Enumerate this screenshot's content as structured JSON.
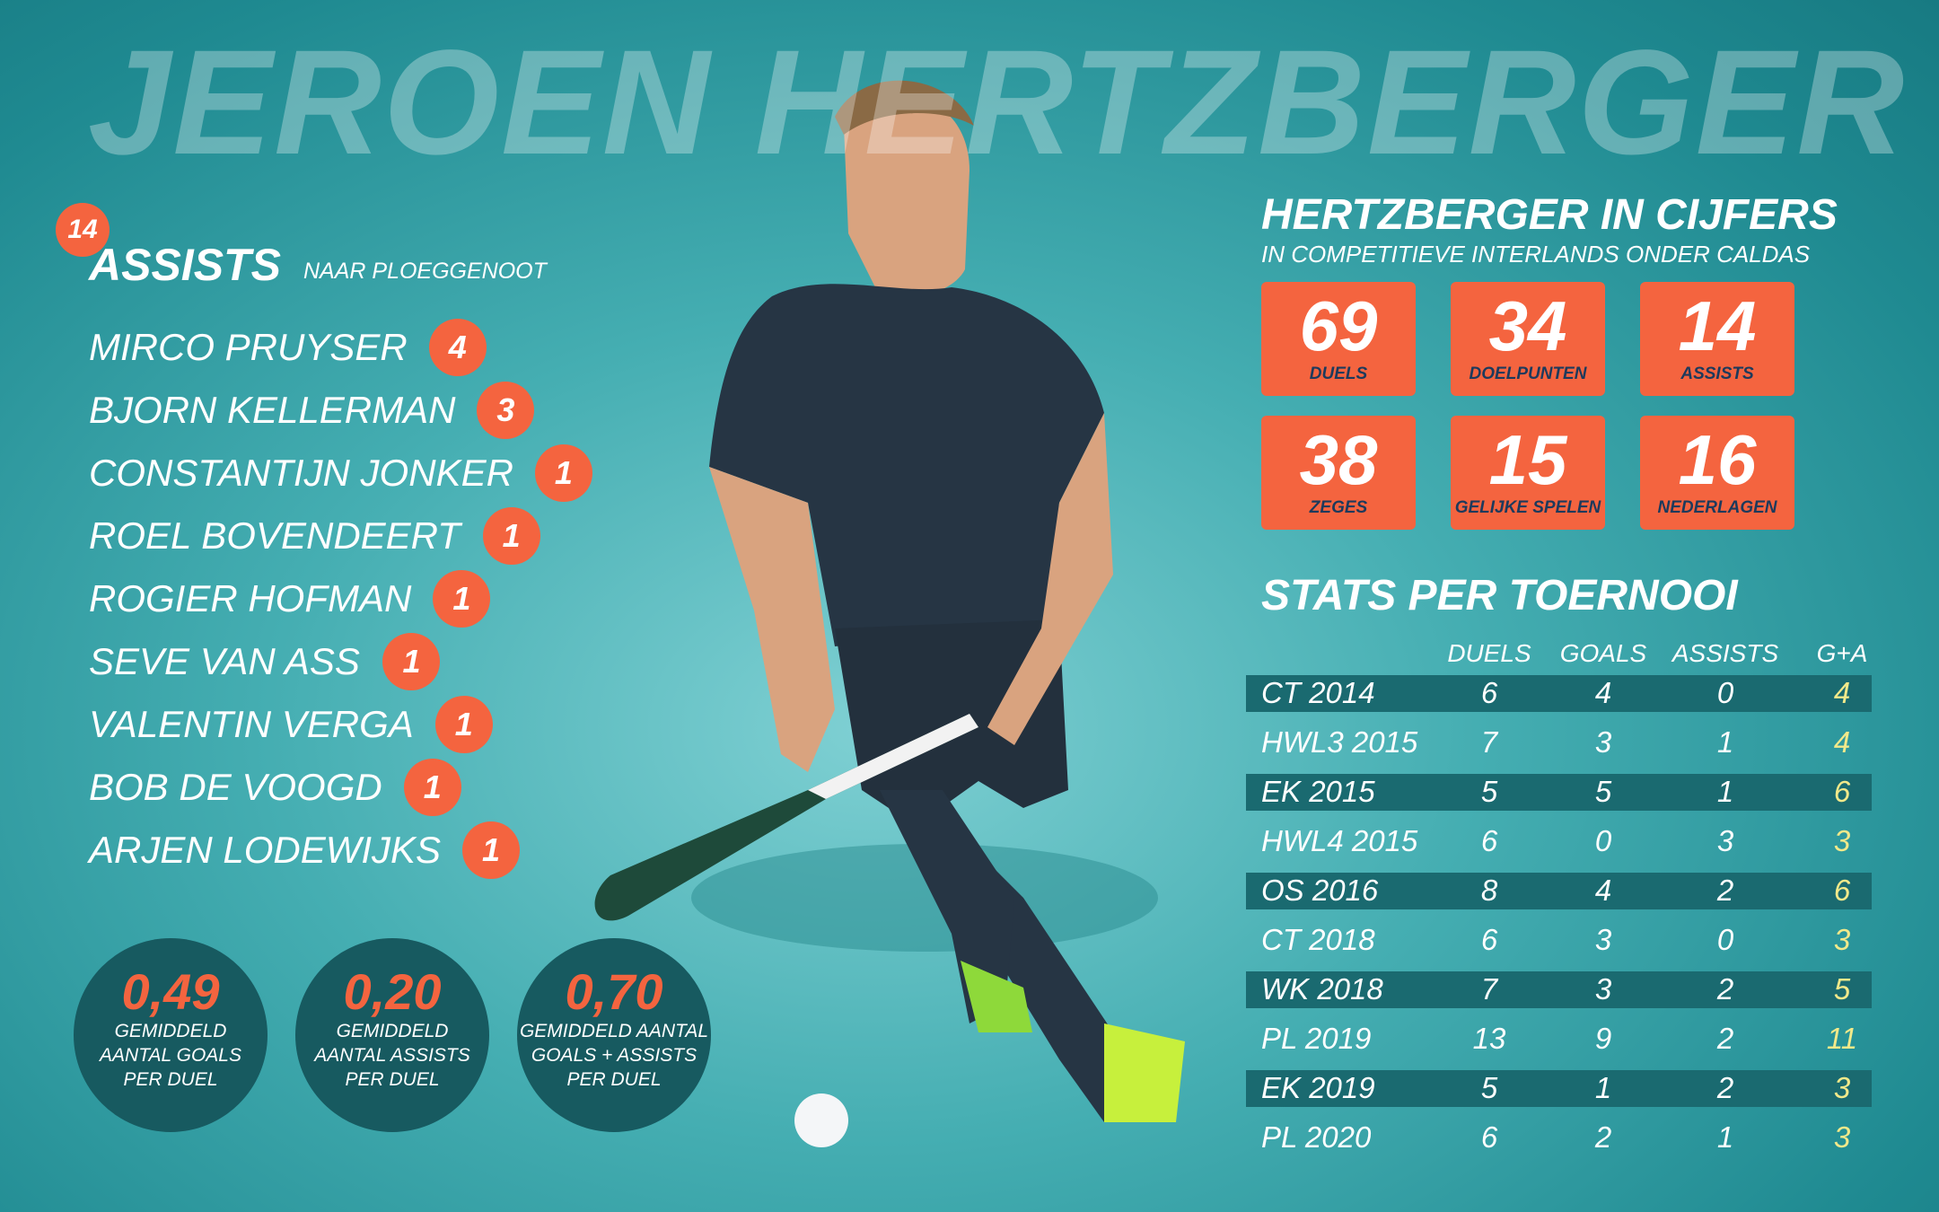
{
  "title": "JEROEN HERTZBERGER",
  "assists": {
    "total": "14",
    "label": "ASSISTS",
    "sublabel": "NAAR PLOEGGENOOT",
    "players": [
      {
        "name": "MIRCO PRUYSER",
        "count": "4"
      },
      {
        "name": "BJORN KELLERMAN",
        "count": "3"
      },
      {
        "name": "CONSTANTIJN JONKER",
        "count": "1"
      },
      {
        "name": "ROEL BOVENDEERT",
        "count": "1"
      },
      {
        "name": "ROGIER HOFMAN",
        "count": "1"
      },
      {
        "name": "SEVE VAN ASS",
        "count": "1"
      },
      {
        "name": "VALENTIN VERGA",
        "count": "1"
      },
      {
        "name": "BOB DE VOOGD",
        "count": "1"
      },
      {
        "name": "ARJEN LODEWIJKS",
        "count": "1"
      }
    ]
  },
  "averages": [
    {
      "value": "0,49",
      "lines": [
        "GEMIDDELD",
        "AANTAL GOALS",
        "PER DUEL"
      ]
    },
    {
      "value": "0,20",
      "lines": [
        "GEMIDDELD",
        "AANTAL ASSISTS",
        "PER DUEL"
      ]
    },
    {
      "value": "0,70",
      "lines": [
        "GEMIDDELD AANTAL",
        "GOALS + ASSISTS",
        "PER DUEL"
      ]
    }
  ],
  "cijfers": {
    "title": "HERTZBERGER IN CIJFERS",
    "subtitle": "IN COMPETITIEVE INTERLANDS ONDER CALDAS",
    "tiles": [
      {
        "value": "69",
        "label": "DUELS"
      },
      {
        "value": "34",
        "label": "DOELPUNTEN"
      },
      {
        "value": "14",
        "label": "ASSISTS"
      },
      {
        "value": "38",
        "label": "ZEGES"
      },
      {
        "value": "15",
        "label": "GELIJKE SPELEN"
      },
      {
        "value": "16",
        "label": "NEDERLAGEN"
      }
    ]
  },
  "table": {
    "title": "STATS PER TOERNOOI",
    "header": [
      "DUELS",
      "GOALS",
      "ASSISTS",
      "G+A"
    ],
    "rows": [
      [
        "CT 2014",
        "6",
        "4",
        "0",
        "4"
      ],
      [
        "HWL3 2015",
        "7",
        "3",
        "1",
        "4"
      ],
      [
        "EK 2015",
        "5",
        "5",
        "1",
        "6"
      ],
      [
        "HWL4 2015",
        "6",
        "0",
        "3",
        "3"
      ],
      [
        "OS 2016",
        "8",
        "4",
        "2",
        "6"
      ],
      [
        "CT 2018",
        "6",
        "3",
        "0",
        "3"
      ],
      [
        "WK 2018",
        "7",
        "3",
        "2",
        "5"
      ],
      [
        "PL 2019",
        "13",
        "9",
        "2",
        "11"
      ],
      [
        "EK 2019",
        "5",
        "1",
        "2",
        "3"
      ],
      [
        "PL 2020",
        "6",
        "2",
        "1",
        "3"
      ]
    ]
  }
}
